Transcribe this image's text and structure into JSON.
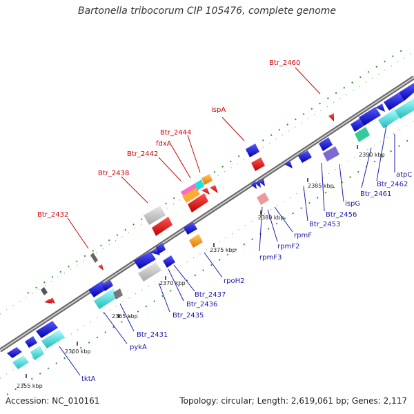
{
  "title": "Bartonella tribocorum CIP 105476, complete genome",
  "footer": {
    "accession": "Accession: NC_010161",
    "summary": "Topology: circular; Length: 2,619,061 bp; Genes: 2,117"
  },
  "ticks": [
    "2355 kbp",
    "2360 kbp",
    "2365 kbp",
    "2370 kbp",
    "2375 kbp",
    "2380 kbp",
    "2385 kbp",
    "2390 kbp"
  ],
  "labels_top": [
    "Btr_2460",
    "ispA",
    "Btr_2444",
    "fdxA",
    "Btr_2442",
    "Btr_2438",
    "Btr_2432"
  ],
  "labels_bottom": [
    "atpC",
    "Btr_2462",
    "Btr_2461",
    "ispG",
    "Btr_2456",
    "Btr_2453",
    "rpmF",
    "rpmF2",
    "rpmF3",
    "rpoH2",
    "Btr_2437",
    "Btr_2436",
    "Btr_2435",
    "Btr_2431",
    "pykA",
    "tktA"
  ],
  "colors": {
    "blue": "#1a1ae0",
    "red": "#ee1111",
    "cyan": "#33dddd",
    "teal": "#22aaaa",
    "gray": "#c8c8c8",
    "orange": "#ff9922",
    "pink": "#ee9999",
    "green": "#33cc99",
    "purple": "#7b6bd0",
    "backbone": "#888888",
    "dots": "#229922"
  }
}
